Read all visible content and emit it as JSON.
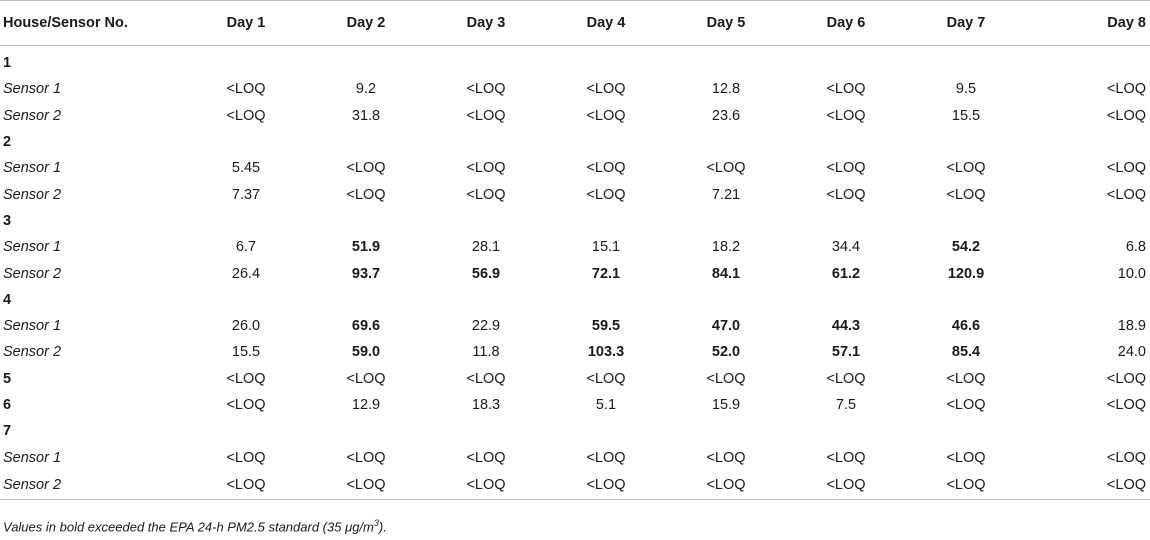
{
  "table": {
    "headers": [
      "House/Sensor No.",
      "Day 1",
      "Day 2",
      "Day 3",
      "Day 4",
      "Day 5",
      "Day 6",
      "Day 7",
      "Day 8"
    ],
    "rows": [
      {
        "type": "group",
        "label": "1",
        "cells": []
      },
      {
        "type": "sensor",
        "label": "Sensor 1",
        "cells": [
          "<LOQ",
          "9.2",
          "<LOQ",
          "<LOQ",
          "12.8",
          "<LOQ",
          "9.5",
          "<LOQ"
        ],
        "bold": []
      },
      {
        "type": "sensor",
        "label": "Sensor 2",
        "cells": [
          "<LOQ",
          "31.8",
          "<LOQ",
          "<LOQ",
          "23.6",
          "<LOQ",
          "15.5",
          "<LOQ"
        ],
        "bold": []
      },
      {
        "type": "group",
        "label": "2",
        "cells": []
      },
      {
        "type": "sensor",
        "label": "Sensor 1",
        "cells": [
          "5.45",
          "<LOQ",
          "<LOQ",
          "<LOQ",
          "<LOQ",
          "<LOQ",
          "<LOQ",
          "<LOQ"
        ],
        "bold": []
      },
      {
        "type": "sensor",
        "label": "Sensor 2",
        "cells": [
          "7.37",
          "<LOQ",
          "<LOQ",
          "<LOQ",
          "7.21",
          "<LOQ",
          "<LOQ",
          "<LOQ"
        ],
        "bold": []
      },
      {
        "type": "group",
        "label": "3",
        "cells": []
      },
      {
        "type": "sensor",
        "label": "Sensor 1",
        "cells": [
          "6.7",
          "51.9",
          "28.1",
          "15.1",
          "18.2",
          "34.4",
          "54.2",
          "6.8"
        ],
        "bold": [
          1,
          6
        ]
      },
      {
        "type": "sensor",
        "label": "Sensor 2",
        "cells": [
          "26.4",
          "93.7",
          "56.9",
          "72.1",
          "84.1",
          "61.2",
          "120.9",
          "10.0"
        ],
        "bold": [
          1,
          2,
          3,
          4,
          5,
          6
        ]
      },
      {
        "type": "group",
        "label": "4",
        "cells": []
      },
      {
        "type": "sensor",
        "label": "Sensor 1",
        "cells": [
          "26.0",
          "69.6",
          "22.9",
          "59.5",
          "47.0",
          "44.3",
          "46.6",
          "18.9"
        ],
        "bold": [
          1,
          3,
          4,
          5,
          6
        ]
      },
      {
        "type": "sensor",
        "label": "Sensor 2",
        "cells": [
          "15.5",
          "59.0",
          "11.8",
          "103.3",
          "52.0",
          "57.1",
          "85.4",
          "24.0"
        ],
        "bold": [
          1,
          3,
          4,
          5,
          6
        ]
      },
      {
        "type": "group",
        "label": "5",
        "cells": [
          "<LOQ",
          "<LOQ",
          "<LOQ",
          "<LOQ",
          "<LOQ",
          "<LOQ",
          "<LOQ",
          "<LOQ"
        ],
        "bold": []
      },
      {
        "type": "group",
        "label": "6",
        "cells": [
          "<LOQ",
          "12.9",
          "18.3",
          "5.1",
          "15.9",
          "7.5",
          "<LOQ",
          "<LOQ"
        ],
        "bold": []
      },
      {
        "type": "group",
        "label": "7",
        "cells": []
      },
      {
        "type": "sensor",
        "label": "Sensor 1",
        "cells": [
          "<LOQ",
          "<LOQ",
          "<LOQ",
          "<LOQ",
          "<LOQ",
          "<LOQ",
          "<LOQ",
          "<LOQ"
        ],
        "bold": []
      },
      {
        "type": "sensor",
        "label": "Sensor 2",
        "cells": [
          "<LOQ",
          "<LOQ",
          "<LOQ",
          "<LOQ",
          "<LOQ",
          "<LOQ",
          "<LOQ",
          "<LOQ"
        ],
        "bold": []
      }
    ]
  },
  "footnote": {
    "prefix": "Values in bold exceeded the EPA 24-h PM2.5 standard (35 μg/m",
    "superscript": "3",
    "suffix": ")."
  }
}
